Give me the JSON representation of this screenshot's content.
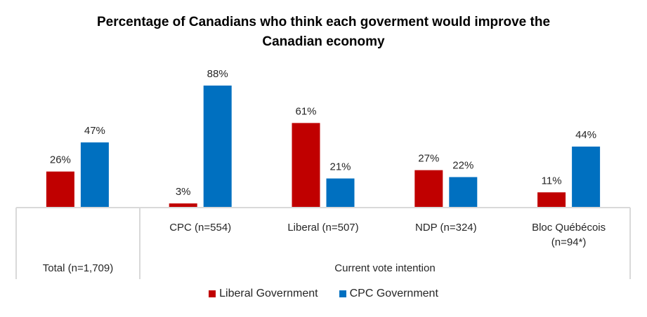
{
  "chart_data": {
    "type": "bar",
    "title": "Percentage of Canadians who think each goverment would improve the Canadian economy",
    "title_lines": [
      "Percentage of Canadians who think each goverment would improve the",
      "Canadian economy"
    ],
    "categories": [
      "Total (n=1,709)",
      "CPC (n=554)",
      "Liberal (n=507)",
      "NDP (n=324)",
      "Bloc Québécois (n=94*)"
    ],
    "category_lines": [
      [
        "Total (n=1,709)"
      ],
      [
        "CPC (n=554)"
      ],
      [
        "Liberal (n=507)"
      ],
      [
        "NDP (n=324)"
      ],
      [
        "Bloc Québécois",
        "(n=94*)"
      ]
    ],
    "group_labels": [
      {
        "label": "",
        "categories": [
          0
        ]
      },
      {
        "label": "Current vote intention",
        "categories": [
          1,
          2,
          3,
          4
        ]
      }
    ],
    "series": [
      {
        "name": "Liberal Government",
        "color": "#C00000",
        "values": [
          26,
          3,
          61,
          27,
          11
        ]
      },
      {
        "name": "CPC Government",
        "color": "#0070C0",
        "values": [
          47,
          88,
          21,
          22,
          44
        ]
      }
    ],
    "value_suffix": "%",
    "xlabel": "",
    "ylabel": "",
    "ylim": [
      0,
      88
    ],
    "grid": false,
    "legend_position": "bottom"
  }
}
